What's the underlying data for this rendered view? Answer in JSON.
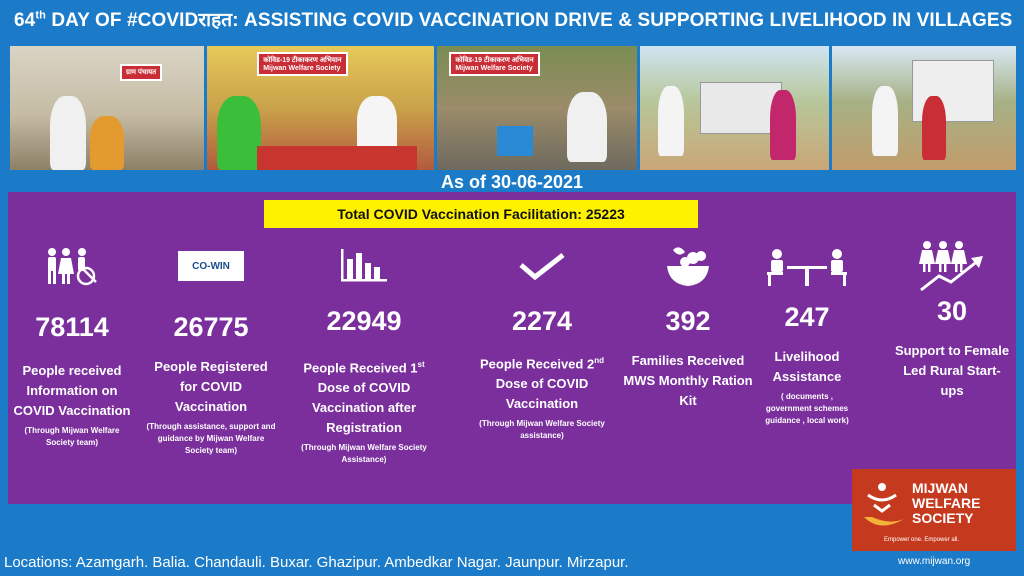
{
  "title": {
    "day_number": "64",
    "day_suffix": "th",
    "rest": " DAY OF #COVIDराहत: ASSISTING COVID VACCINATION DRIVE & SUPPORTING LIVELIHOOD IN VILLAGES"
  },
  "photos": {
    "banner_1": "ग्राम पंचायत",
    "banner_2": "कोविड-19 टीकाकरण अभियान",
    "banner_2b": "Mijwan Welfare Society",
    "banner_3": "कोविड-19 टीकाकरण अभियान",
    "banner_3b": "Mijwan Welfare Society"
  },
  "as_of": "As of 30-06-2021",
  "total": "Total COVID Vaccination Facilitation: 25223",
  "stats": [
    {
      "icon": "people-wheelchair-icon",
      "number": "78114",
      "label": "People received Information on COVID Vaccination",
      "sub": "(Through Mijwan Welfare Society team)"
    },
    {
      "icon": "cowin-logo",
      "icon_text": "CO-WIN",
      "number": "26775",
      "label": "People Registered for COVID Vaccination",
      "sub": "(Through assistance, support and guidance by Mijwan Welfare Society team)"
    },
    {
      "icon": "bar-chart-icon",
      "number": "22949",
      "label_pre": "People Received 1",
      "label_sup": "st",
      "label_post": " Dose of COVID Vaccination after Registration",
      "sub": "(Through Mijwan Welfare Society Assistance)"
    },
    {
      "icon": "checkmark-icon",
      "number": "2274",
      "label_pre": "People Received 2",
      "label_sup": "nd",
      "label_post": " Dose of COVID Vaccination",
      "sub": "(Through Mijwan Welfare Society assistance)"
    },
    {
      "icon": "fruit-basket-icon",
      "number": "392",
      "label": "Families Received MWS Monthly Ration Kit",
      "sub": ""
    },
    {
      "icon": "meeting-table-icon",
      "number": "247",
      "label": "Livelihood Assistance",
      "sub": "( documents , government schemes guidance , local work)"
    },
    {
      "icon": "women-growth-icon",
      "number": "30",
      "label": "Support to Female Led Rural Start-ups",
      "sub": ""
    }
  ],
  "logo": {
    "line1": "MIJWAN",
    "line2": "WELFARE",
    "line3": "SOCIETY",
    "tagline": "Empower one. Empower all."
  },
  "website": "www.mijwan.org",
  "locations": "Locations: Azamgarh. Balia. Chandauli. Buxar. Ghazipur. Ambedkar Nagar. Jaunpur. Mirzapur.",
  "colors": {
    "background": "#1b7bc8",
    "panel": "#7a2f9d",
    "highlight": "#fff200",
    "logo": "#c53a1e"
  }
}
